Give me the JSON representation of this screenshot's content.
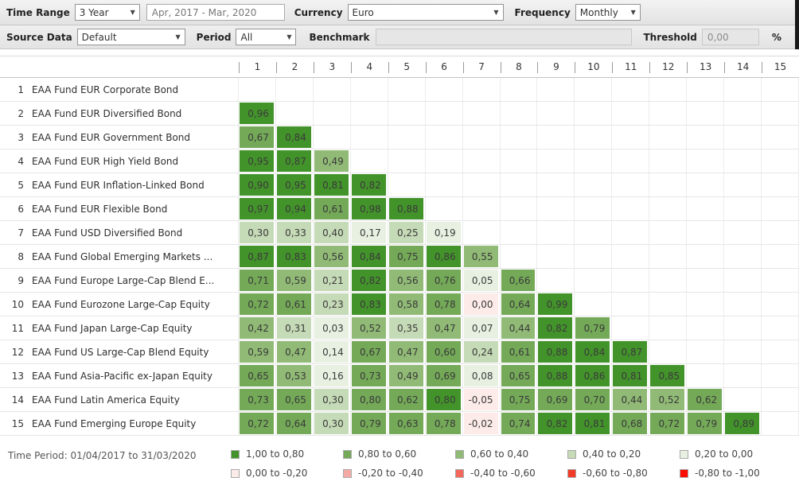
{
  "toolbars": {
    "row1": {
      "time_range": {
        "label": "Time Range",
        "value": "3 Year"
      },
      "date_range": {
        "value": "Apr, 2017 - Mar, 2020"
      },
      "currency": {
        "label": "Currency",
        "value": "Euro"
      },
      "frequency": {
        "label": "Frequency",
        "value": "Monthly"
      }
    },
    "row2": {
      "source_data": {
        "label": "Source Data",
        "value": "Default"
      },
      "period": {
        "label": "Period",
        "value": "All"
      },
      "benchmark": {
        "label": "Benchmark",
        "value": ""
      },
      "threshold": {
        "label": "Threshold",
        "value": "0,00",
        "unit": "%"
      }
    }
  },
  "matrix": {
    "column_headers": [
      "1",
      "2",
      "3",
      "4",
      "5",
      "6",
      "7",
      "8",
      "9",
      "10",
      "11",
      "12",
      "13",
      "14",
      "15"
    ],
    "rows": [
      {
        "index": "1",
        "name": "EAA Fund EUR Corporate Bond",
        "cells": []
      },
      {
        "index": "2",
        "name": "EAA Fund EUR Diversified Bond",
        "cells": [
          {
            "v": "0,96",
            "b": 1
          }
        ]
      },
      {
        "index": "3",
        "name": "EAA Fund EUR Government Bond",
        "cells": [
          {
            "v": "0,67",
            "b": 2
          },
          {
            "v": "0,84",
            "b": 1
          }
        ]
      },
      {
        "index": "4",
        "name": "EAA Fund EUR High Yield Bond",
        "cells": [
          {
            "v": "0,95",
            "b": 1
          },
          {
            "v": "0,87",
            "b": 1
          },
          {
            "v": "0,49",
            "b": 3
          }
        ]
      },
      {
        "index": "5",
        "name": "EAA Fund EUR Inflation-Linked Bond",
        "cells": [
          {
            "v": "0,90",
            "b": 1
          },
          {
            "v": "0,95",
            "b": 1
          },
          {
            "v": "0,81",
            "b": 1
          },
          {
            "v": "0,82",
            "b": 1
          }
        ]
      },
      {
        "index": "6",
        "name": "EAA Fund EUR Flexible Bond",
        "cells": [
          {
            "v": "0,97",
            "b": 1
          },
          {
            "v": "0,94",
            "b": 1
          },
          {
            "v": "0,61",
            "b": 2
          },
          {
            "v": "0,98",
            "b": 1
          },
          {
            "v": "0,88",
            "b": 1
          }
        ]
      },
      {
        "index": "7",
        "name": "EAA Fund USD Diversified Bond",
        "cells": [
          {
            "v": "0,30",
            "b": 4
          },
          {
            "v": "0,33",
            "b": 4
          },
          {
            "v": "0,40",
            "b": 4
          },
          {
            "v": "0,17",
            "b": 5
          },
          {
            "v": "0,25",
            "b": 4
          },
          {
            "v": "0,19",
            "b": 5
          }
        ]
      },
      {
        "index": "8",
        "name": "EAA Fund Global Emerging Markets ...",
        "cells": [
          {
            "v": "0,87",
            "b": 1
          },
          {
            "v": "0,83",
            "b": 1
          },
          {
            "v": "0,56",
            "b": 3
          },
          {
            "v": "0,84",
            "b": 1
          },
          {
            "v": "0,75",
            "b": 2
          },
          {
            "v": "0,86",
            "b": 1
          },
          {
            "v": "0,55",
            "b": 3
          }
        ]
      },
      {
        "index": "9",
        "name": "EAA Fund Europe Large-Cap Blend E...",
        "cells": [
          {
            "v": "0,71",
            "b": 2
          },
          {
            "v": "0,59",
            "b": 3
          },
          {
            "v": "0,21",
            "b": 4
          },
          {
            "v": "0,82",
            "b": 1
          },
          {
            "v": "0,56",
            "b": 3
          },
          {
            "v": "0,76",
            "b": 2
          },
          {
            "v": "0,05",
            "b": 5
          },
          {
            "v": "0,66",
            "b": 2
          }
        ]
      },
      {
        "index": "10",
        "name": "EAA Fund Eurozone Large-Cap Equity",
        "cells": [
          {
            "v": "0,72",
            "b": 2
          },
          {
            "v": "0,61",
            "b": 2
          },
          {
            "v": "0,23",
            "b": 4
          },
          {
            "v": "0,83",
            "b": 1
          },
          {
            "v": "0,58",
            "b": 3
          },
          {
            "v": "0,78",
            "b": 2
          },
          {
            "v": "0,00",
            "b": 6
          },
          {
            "v": "0,64",
            "b": 2
          },
          {
            "v": "0,99",
            "b": 1
          }
        ]
      },
      {
        "index": "11",
        "name": "EAA Fund Japan Large-Cap Equity",
        "cells": [
          {
            "v": "0,42",
            "b": 3
          },
          {
            "v": "0,31",
            "b": 4
          },
          {
            "v": "0,03",
            "b": 5
          },
          {
            "v": "0,52",
            "b": 3
          },
          {
            "v": "0,35",
            "b": 4
          },
          {
            "v": "0,47",
            "b": 3
          },
          {
            "v": "0,07",
            "b": 5
          },
          {
            "v": "0,44",
            "b": 3
          },
          {
            "v": "0,82",
            "b": 1
          },
          {
            "v": "0,79",
            "b": 2
          }
        ]
      },
      {
        "index": "12",
        "name": "EAA Fund US Large-Cap Blend Equity",
        "cells": [
          {
            "v": "0,59",
            "b": 3
          },
          {
            "v": "0,47",
            "b": 3
          },
          {
            "v": "0,14",
            "b": 5
          },
          {
            "v": "0,67",
            "b": 2
          },
          {
            "v": "0,47",
            "b": 3
          },
          {
            "v": "0,60",
            "b": 2
          },
          {
            "v": "0,24",
            "b": 4
          },
          {
            "v": "0,61",
            "b": 2
          },
          {
            "v": "0,88",
            "b": 1
          },
          {
            "v": "0,84",
            "b": 1
          },
          {
            "v": "0,87",
            "b": 1
          }
        ]
      },
      {
        "index": "13",
        "name": "EAA Fund Asia-Pacific ex-Japan Equity",
        "cells": [
          {
            "v": "0,65",
            "b": 2
          },
          {
            "v": "0,53",
            "b": 3
          },
          {
            "v": "0,16",
            "b": 5
          },
          {
            "v": "0,73",
            "b": 2
          },
          {
            "v": "0,49",
            "b": 3
          },
          {
            "v": "0,69",
            "b": 2
          },
          {
            "v": "0,08",
            "b": 5
          },
          {
            "v": "0,65",
            "b": 2
          },
          {
            "v": "0,88",
            "b": 1
          },
          {
            "v": "0,86",
            "b": 1
          },
          {
            "v": "0,81",
            "b": 1
          },
          {
            "v": "0,85",
            "b": 1
          }
        ]
      },
      {
        "index": "14",
        "name": "EAA Fund Latin America Equity",
        "cells": [
          {
            "v": "0,73",
            "b": 2
          },
          {
            "v": "0,65",
            "b": 2
          },
          {
            "v": "0,30",
            "b": 4
          },
          {
            "v": "0,80",
            "b": 2
          },
          {
            "v": "0,62",
            "b": 2
          },
          {
            "v": "0,80",
            "b": 1
          },
          {
            "v": "-0,05",
            "b": 6
          },
          {
            "v": "0,75",
            "b": 2
          },
          {
            "v": "0,69",
            "b": 2
          },
          {
            "v": "0,70",
            "b": 2
          },
          {
            "v": "0,44",
            "b": 3
          },
          {
            "v": "0,52",
            "b": 3
          },
          {
            "v": "0,62",
            "b": 2
          }
        ]
      },
      {
        "index": "15",
        "name": "EAA Fund Emerging Europe Equity",
        "cells": [
          {
            "v": "0,72",
            "b": 2
          },
          {
            "v": "0,64",
            "b": 2
          },
          {
            "v": "0,30",
            "b": 4
          },
          {
            "v": "0,79",
            "b": 2
          },
          {
            "v": "0,63",
            "b": 2
          },
          {
            "v": "0,78",
            "b": 2
          },
          {
            "v": "-0,02",
            "b": 6
          },
          {
            "v": "0,74",
            "b": 2
          },
          {
            "v": "0,82",
            "b": 1
          },
          {
            "v": "0,81",
            "b": 1
          },
          {
            "v": "0,68",
            "b": 2
          },
          {
            "v": "0,72",
            "b": 2
          },
          {
            "v": "0,79",
            "b": 2
          },
          {
            "v": "0,89",
            "b": 1
          }
        ]
      }
    ]
  },
  "legend": {
    "time_period": "Time Period: 01/04/2017 to 31/03/2020",
    "items": [
      {
        "label": "1,00 to 0,80",
        "bucket": 1
      },
      {
        "label": "0,80 to 0,60",
        "bucket": 2
      },
      {
        "label": "0,60 to 0,40",
        "bucket": 3
      },
      {
        "label": "0,40 to 0,20",
        "bucket": 4
      },
      {
        "label": "0,20 to 0,00",
        "bucket": 5
      },
      {
        "label": "0,00 to -0,20",
        "bucket": 6
      },
      {
        "label": "-0,20 to -0,40",
        "bucket": 7
      },
      {
        "label": "-0,40 to -0,60",
        "bucket": 8
      },
      {
        "label": "-0,60 to -0,80",
        "bucket": 9
      },
      {
        "label": "-0,80 to -1,00",
        "bucket": 10
      }
    ]
  },
  "colors": {
    "buckets": [
      "#43932b",
      "#74a958",
      "#90ba75",
      "#c5dab6",
      "#e7f0e1",
      "#fcebe9",
      "#f5a9a4",
      "#f4685c",
      "#f23a28",
      "#fb0d00"
    ]
  }
}
